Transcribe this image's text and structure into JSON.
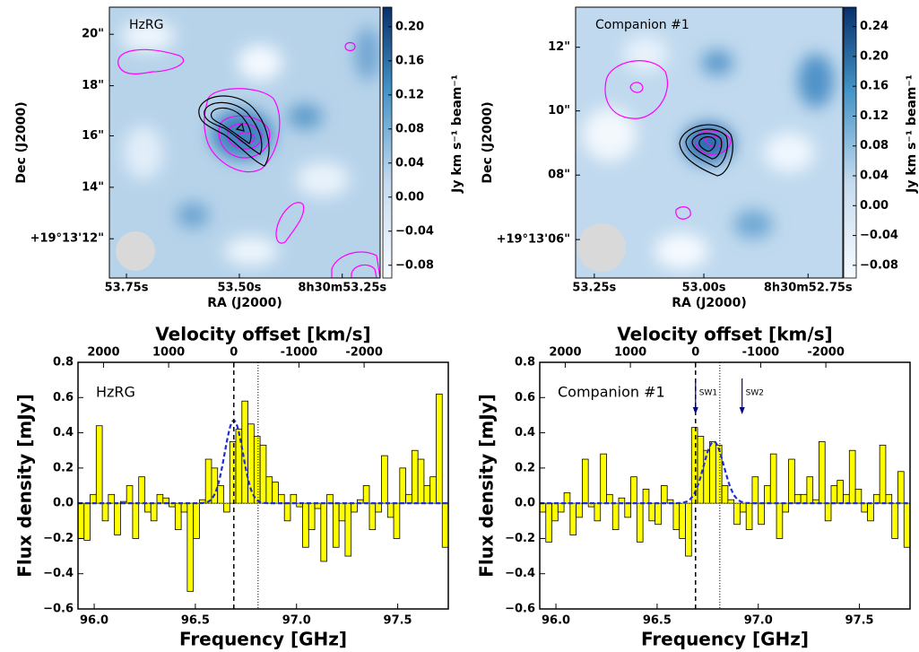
{
  "chart_data": [
    {
      "type": "image",
      "label": "HzRG",
      "xlabel": "RA (J2000)",
      "ylabel": "Dec (J2000)",
      "xtick_labels": [
        "53.75s",
        "53.50s",
        "8h30m53.25s"
      ],
      "ytick_labels": [
        "20\"",
        "18\"",
        "16\"",
        "14\"",
        "+19°13'12\""
      ],
      "colorbar": {
        "label": "Jy km s⁻¹ beam⁻¹",
        "lim": [
          -0.095,
          0.223
        ],
        "ticks": [
          {
            "value": 0.2,
            "label": "0.20"
          },
          {
            "value": 0.16,
            "label": "0.16"
          },
          {
            "value": 0.12,
            "label": "0.12"
          },
          {
            "value": 0.08,
            "label": "0.08"
          },
          {
            "value": 0.04,
            "label": "0.04"
          },
          {
            "value": 0,
            "label": "0.00"
          },
          {
            "value": -0.04,
            "label": "−0.04"
          },
          {
            "value": -0.08,
            "label": "−0.08"
          }
        ]
      }
    },
    {
      "type": "image",
      "label": "Companion #1",
      "xlabel": "RA (J2000)",
      "ylabel": "Dec (J2000)",
      "xtick_labels": [
        "53.25s",
        "53.00s",
        "8h30m52.75s"
      ],
      "ytick_labels": [
        "12\"",
        "10\"",
        "08\"",
        "+19°13'06\""
      ],
      "colorbar": {
        "label": "Jy km s⁻¹ beam⁻¹",
        "lim": [
          -0.097,
          0.266
        ],
        "ticks": [
          {
            "value": 0.24,
            "label": "0.24"
          },
          {
            "value": 0.2,
            "label": "0.20"
          },
          {
            "value": 0.16,
            "label": "0.16"
          },
          {
            "value": 0.12,
            "label": "0.12"
          },
          {
            "value": 0.08,
            "label": "0.08"
          },
          {
            "value": 0.04,
            "label": "0.04"
          },
          {
            "value": 0,
            "label": "0.00"
          },
          {
            "value": -0.04,
            "label": "−0.04"
          },
          {
            "value": -0.08,
            "label": "−0.08"
          }
        ]
      }
    },
    {
      "type": "histogram",
      "label": "HzRG",
      "xlabel": "Frequency [GHz]",
      "ylabel": "Flux density [mJy]",
      "x2label": "Velocity offset [km/s]",
      "color": "#ffff00",
      "bins": [
        95.92,
        95.95,
        95.98,
        96.01,
        96.04,
        96.07,
        96.1,
        96.13,
        96.16,
        96.19,
        96.22,
        96.25,
        96.28,
        96.31,
        96.34,
        96.37,
        96.4,
        96.43,
        96.46,
        96.49,
        96.52,
        96.55,
        96.58,
        96.61,
        96.64,
        96.67,
        96.7,
        96.73,
        96.76,
        96.79,
        96.82,
        96.85,
        96.88,
        96.91,
        96.94,
        96.97,
        97,
        97.03,
        97.06,
        97.09,
        97.12,
        97.15,
        97.18,
        97.21,
        97.24,
        97.27,
        97.3,
        97.33,
        97.36,
        97.39,
        97.42,
        97.45,
        97.48,
        97.51,
        97.54,
        97.57,
        97.6,
        97.63,
        97.66,
        97.69,
        97.72,
        97.75
      ],
      "values": [
        -0.2,
        -0.21,
        0.05,
        0.44,
        -0.1,
        0.05,
        -0.18,
        0.01,
        0.1,
        -0.2,
        0.15,
        -0.05,
        -0.1,
        0.05,
        0.03,
        -0.02,
        -0.15,
        -0.05,
        -0.5,
        -0.2,
        0.02,
        0.25,
        0.2,
        0.1,
        -0.05,
        0.35,
        0.42,
        0.58,
        0.45,
        0.38,
        0.33,
        0.15,
        0.12,
        0.05,
        -0.1,
        0.05,
        -0.02,
        -0.25,
        -0.15,
        -0.03,
        -0.33,
        0.05,
        -0.25,
        -0.1,
        -0.3,
        -0.05,
        0.02,
        0.1,
        -0.15,
        -0.05,
        0.27,
        -0.08,
        -0.2,
        0.2,
        0.05,
        0.3,
        0.25,
        0.1,
        0.15,
        0.62,
        -0.25
      ],
      "xlim": [
        95.92,
        97.75
      ],
      "ylim": [
        -0.6,
        0.8
      ],
      "xticks": [
        {
          "value": 96,
          "label": "96.0"
        },
        96.5,
        {
          "value": 97,
          "label": "97.0"
        },
        97.5
      ],
      "yticks": [
        {
          "value": -0.6,
          "label": "−0.6"
        },
        {
          "value": -0.4,
          "label": "−0.4"
        },
        {
          "value": -0.2,
          "label": "−0.2"
        },
        {
          "value": 0,
          "label": "0.0"
        },
        0.2,
        0.4,
        0.6,
        0.8
      ],
      "x2lim": [
        2391,
        -3292
      ],
      "x2ticks": [
        2000,
        1000,
        0,
        -1000,
        -2000
      ],
      "vlines": [
        {
          "x": 96.69,
          "style": "dashed"
        },
        {
          "x": 96.81,
          "style": "dotted"
        }
      ],
      "fit": {
        "center": 96.69,
        "amplitude": 0.47,
        "sigma": 0.045,
        "color": "#1f2fd0"
      }
    },
    {
      "type": "histogram",
      "label": "Companion #1",
      "xlabel": "Frequency [GHz]",
      "ylabel": "Flux density [mJy]",
      "x2label": "Velocity offset [km/s]",
      "color": "#ffff00",
      "bins": [
        95.92,
        95.95,
        95.98,
        96.01,
        96.04,
        96.07,
        96.1,
        96.13,
        96.16,
        96.19,
        96.22,
        96.25,
        96.28,
        96.31,
        96.34,
        96.37,
        96.4,
        96.43,
        96.46,
        96.49,
        96.52,
        96.55,
        96.58,
        96.61,
        96.64,
        96.67,
        96.7,
        96.73,
        96.76,
        96.79,
        96.82,
        96.85,
        96.88,
        96.91,
        96.94,
        96.97,
        97,
        97.03,
        97.06,
        97.09,
        97.12,
        97.15,
        97.18,
        97.21,
        97.24,
        97.27,
        97.3,
        97.33,
        97.36,
        97.39,
        97.42,
        97.45,
        97.48,
        97.51,
        97.54,
        97.57,
        97.6,
        97.63,
        97.66,
        97.69,
        97.72,
        97.75
      ],
      "values": [
        -0.05,
        -0.22,
        -0.1,
        -0.05,
        0.06,
        -0.18,
        -0.08,
        0.25,
        -0.02,
        -0.1,
        0.28,
        0.05,
        -0.15,
        0.03,
        -0.08,
        0.15,
        -0.22,
        0.08,
        -0.1,
        -0.12,
        0.1,
        0.02,
        -0.15,
        -0.2,
        -0.3,
        0.43,
        0.38,
        0.3,
        0.35,
        0.33,
        0.1,
        0.02,
        -0.12,
        -0.05,
        -0.15,
        0.15,
        -0.12,
        0.1,
        0.28,
        -0.2,
        -0.05,
        0.25,
        0.05,
        0.05,
        0.15,
        0.02,
        0.35,
        -0.1,
        0.1,
        0.13,
        0.05,
        0.3,
        0.08,
        -0.05,
        -0.1,
        0.05,
        0.33,
        0.05,
        -0.2,
        0.18,
        -0.25
      ],
      "xlim": [
        95.92,
        97.75
      ],
      "ylim": [
        -0.6,
        0.8
      ],
      "xticks": [
        {
          "value": 96,
          "label": "96.0"
        },
        96.5,
        {
          "value": 97,
          "label": "97.0"
        },
        97.5
      ],
      "yticks": [
        {
          "value": -0.6,
          "label": "−0.6"
        },
        {
          "value": -0.4,
          "label": "−0.4"
        },
        {
          "value": -0.2,
          "label": "−0.2"
        },
        {
          "value": 0,
          "label": "0.0"
        },
        0.2,
        0.4,
        0.6,
        0.8
      ],
      "x2lim": [
        2391,
        -3292
      ],
      "x2ticks": [
        2000,
        1000,
        0,
        -1000,
        -2000
      ],
      "vlines": [
        {
          "x": 96.69,
          "style": "dashed"
        },
        {
          "x": 96.81,
          "style": "dotted"
        }
      ],
      "fit": {
        "center": 96.78,
        "amplitude": 0.35,
        "sigma": 0.05,
        "color": "#1f2fd0"
      },
      "annotations": [
        {
          "text": "SW1",
          "x": 96.69
        },
        {
          "text": "SW2",
          "x": 96.92
        }
      ]
    }
  ]
}
